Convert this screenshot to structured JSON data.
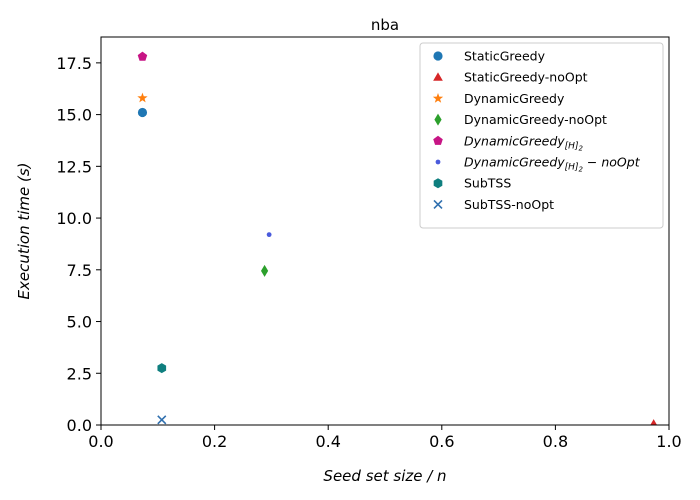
{
  "chart_data": {
    "type": "scatter",
    "title": "nba",
    "xlabel": "Seed set size / n",
    "ylabel": "Execution time (s)",
    "xlim": [
      0.0,
      1.0
    ],
    "ylim": [
      0.0,
      18.75
    ],
    "xticks": [
      "0.0",
      "0.2",
      "0.4",
      "0.6",
      "0.8",
      "1.0"
    ],
    "yticks": [
      "0.0",
      "2.5",
      "5.0",
      "7.5",
      "10.0",
      "12.5",
      "15.0",
      "17.5"
    ],
    "xtick_values": [
      0.0,
      0.2,
      0.4,
      0.6,
      0.8,
      1.0
    ],
    "ytick_values": [
      0.0,
      2.5,
      5.0,
      7.5,
      10.0,
      12.5,
      15.0,
      17.5
    ],
    "grid": false,
    "legend_position": "top-right",
    "series": [
      {
        "name": "StaticGreedy",
        "marker": "circle",
        "color": "#1f77b4",
        "x": 0.073,
        "y": 15.1
      },
      {
        "name": "StaticGreedy-noOpt",
        "marker": "triangle",
        "color": "#d62728",
        "x": 0.973,
        "y": 0.05
      },
      {
        "name": "DynamicGreedy",
        "marker": "star",
        "color": "#ff7f0e",
        "x": 0.073,
        "y": 15.8
      },
      {
        "name": "DynamicGreedy-noOpt",
        "marker": "thin-diamond",
        "color": "#2ca02c",
        "x": 0.288,
        "y": 7.45
      },
      {
        "name": "DynamicGreedy[H]2",
        "name_base": "DynamicGreedy",
        "name_sub": "[H]",
        "name_subsub": "2",
        "name_suffix": "",
        "marker": "pentagon",
        "color": "#c71585",
        "x": 0.073,
        "y": 17.8
      },
      {
        "name": "DynamicGreedy[H]2 − noOpt",
        "name_base": "DynamicGreedy",
        "name_sub": "[H]",
        "name_subsub": "2",
        "name_suffix": " − noOpt",
        "marker": "point",
        "color": "#4a5bdc",
        "x": 0.296,
        "y": 9.2
      },
      {
        "name": "SubTSS",
        "marker": "hexagon",
        "color": "#0f7f7f",
        "x": 0.107,
        "y": 2.75
      },
      {
        "name": "SubTSS-noOpt",
        "marker": "x",
        "color": "#2f6fae",
        "x": 0.107,
        "y": 0.25
      }
    ]
  }
}
